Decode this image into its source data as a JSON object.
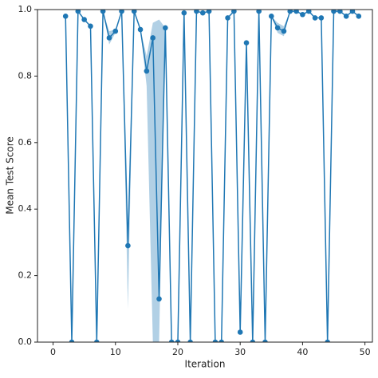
{
  "chart_data": {
    "type": "line",
    "xlabel": "Iteration",
    "ylabel": "Mean Test Score",
    "x": [
      2,
      3,
      4,
      5,
      6,
      7,
      8,
      9,
      10,
      11,
      12,
      13,
      14,
      15,
      16,
      17,
      18,
      19,
      20,
      21,
      22,
      23,
      24,
      25,
      26,
      27,
      28,
      29,
      30,
      31,
      32,
      33,
      34,
      35,
      36,
      37,
      38,
      39,
      40,
      41,
      42,
      43,
      44,
      45,
      46,
      47,
      48,
      49
    ],
    "series": [
      {
        "color": "#1f77b4",
        "values": [
          0.98,
          0,
          0.995,
          0.97,
          0.95,
          0,
          0.995,
          0.915,
          0.935,
          0.995,
          0.29,
          0.995,
          0.94,
          0.815,
          0.915,
          0.13,
          0.945,
          0,
          0,
          0.99,
          0,
          0.995,
          0.99,
          0.995,
          0,
          0,
          0.975,
          0.995,
          0.03,
          0.9,
          0,
          0.995,
          0,
          0.98,
          0.945,
          0.935,
          0.995,
          0.995,
          0.985,
          0.995,
          0.975,
          0.975,
          0,
          0.995,
          0.995,
          0.98,
          0.995,
          0.98
        ],
        "ci_lower": [
          null,
          null,
          null,
          null,
          null,
          null,
          0.995,
          0.895,
          0.93,
          0.995,
          0.1,
          0.995,
          0.94,
          0.77,
          0,
          0,
          0.93,
          null,
          null,
          null,
          null,
          null,
          null,
          null,
          null,
          null,
          null,
          null,
          null,
          null,
          null,
          null,
          null,
          0.98,
          0.93,
          0.92,
          0.995,
          null,
          null,
          null,
          null,
          null,
          null,
          null,
          null,
          null,
          null,
          null
        ],
        "ci_upper": [
          null,
          null,
          null,
          null,
          null,
          null,
          0.995,
          0.935,
          0.94,
          0.995,
          0.29,
          0.995,
          0.94,
          0.86,
          0.96,
          0.97,
          0.945,
          null,
          null,
          null,
          null,
          null,
          null,
          null,
          null,
          null,
          null,
          null,
          null,
          null,
          null,
          null,
          null,
          0.98,
          0.96,
          0.95,
          0.995,
          null,
          null,
          null,
          null,
          null,
          null,
          null,
          null,
          null,
          null,
          null
        ]
      }
    ],
    "xlim": [
      -2.5,
      51.2
    ],
    "ylim": [
      0,
      1
    ],
    "xticks": [
      0,
      10,
      20,
      30,
      40,
      50
    ],
    "yticks": [
      {
        "value": 0,
        "label": "0.0"
      },
      {
        "value": 0.2,
        "label": "0.2"
      },
      {
        "value": 0.4,
        "label": "0.4"
      },
      {
        "value": 0.6,
        "label": "0.6"
      },
      {
        "value": 0.8,
        "label": "0.8"
      },
      {
        "value": 1,
        "label": "1.0"
      }
    ]
  }
}
